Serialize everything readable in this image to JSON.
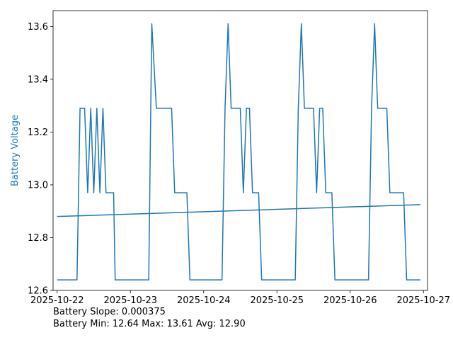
{
  "chart_data": {
    "type": "line",
    "title": "",
    "xlabel": "",
    "ylabel": "Battery Voltage",
    "x_axis": {
      "kind": "datetime",
      "range": [
        "2025-10-21T22:40",
        "2025-10-27T01:20"
      ],
      "ticks": [
        "2025-10-22",
        "2025-10-23",
        "2025-10-24",
        "2025-10-25",
        "2025-10-26",
        "2025-10-27"
      ]
    },
    "y_axis": {
      "range": [
        12.6,
        13.66
      ],
      "ticks": [
        "12.6",
        "12.8",
        "13.0",
        "13.2",
        "13.4",
        "13.6"
      ]
    },
    "grid": false,
    "colors": {
      "voltage": "#1f77b4",
      "trend": "#1f77b4",
      "ylabel": "#1f77b4"
    },
    "series": [
      {
        "kind": "voltage",
        "points": [
          [
            "2025-10-22T00:00",
            12.64
          ],
          [
            "2025-10-22T06:30",
            12.64
          ],
          [
            "2025-10-22T07:30",
            13.29
          ],
          [
            "2025-10-22T09:00",
            13.29
          ],
          [
            "2025-10-22T10:00",
            12.97
          ],
          [
            "2025-10-22T11:00",
            13.29
          ],
          [
            "2025-10-22T12:00",
            12.97
          ],
          [
            "2025-10-22T13:00",
            13.29
          ],
          [
            "2025-10-22T14:00",
            12.97
          ],
          [
            "2025-10-22T15:00",
            13.29
          ],
          [
            "2025-10-22T16:00",
            12.97
          ],
          [
            "2025-10-22T18:30",
            12.97
          ],
          [
            "2025-10-22T19:00",
            12.64
          ],
          [
            "2025-10-23T06:00",
            12.64
          ],
          [
            "2025-10-23T07:00",
            13.61
          ],
          [
            "2025-10-23T08:30",
            13.29
          ],
          [
            "2025-10-23T13:30",
            13.29
          ],
          [
            "2025-10-23T14:30",
            12.97
          ],
          [
            "2025-10-23T18:30",
            12.97
          ],
          [
            "2025-10-23T19:30",
            12.64
          ],
          [
            "2025-10-24T06:00",
            12.64
          ],
          [
            "2025-10-24T07:00",
            13.29
          ],
          [
            "2025-10-24T08:00",
            13.61
          ],
          [
            "2025-10-24T09:00",
            13.29
          ],
          [
            "2025-10-24T12:00",
            13.29
          ],
          [
            "2025-10-24T13:00",
            12.97
          ],
          [
            "2025-10-24T14:00",
            13.29
          ],
          [
            "2025-10-24T15:00",
            13.29
          ],
          [
            "2025-10-24T16:00",
            12.97
          ],
          [
            "2025-10-24T18:00",
            12.97
          ],
          [
            "2025-10-24T19:00",
            12.64
          ],
          [
            "2025-10-25T06:00",
            12.64
          ],
          [
            "2025-10-25T07:00",
            13.29
          ],
          [
            "2025-10-25T08:00",
            13.61
          ],
          [
            "2025-10-25T09:00",
            13.29
          ],
          [
            "2025-10-25T12:00",
            13.29
          ],
          [
            "2025-10-25T13:00",
            12.97
          ],
          [
            "2025-10-25T14:00",
            13.29
          ],
          [
            "2025-10-25T15:00",
            13.29
          ],
          [
            "2025-10-25T16:00",
            12.97
          ],
          [
            "2025-10-25T18:00",
            12.97
          ],
          [
            "2025-10-25T19:00",
            12.64
          ],
          [
            "2025-10-26T06:00",
            12.64
          ],
          [
            "2025-10-26T07:00",
            13.29
          ],
          [
            "2025-10-26T08:00",
            13.61
          ],
          [
            "2025-10-26T09:00",
            13.29
          ],
          [
            "2025-10-26T12:00",
            13.29
          ],
          [
            "2025-10-26T13:00",
            12.97
          ],
          [
            "2025-10-26T17:30",
            12.97
          ],
          [
            "2025-10-26T18:30",
            12.64
          ],
          [
            "2025-10-26T23:00",
            12.64
          ]
        ]
      },
      {
        "kind": "trend",
        "points": [
          [
            "2025-10-22T00:00",
            12.88
          ],
          [
            "2025-10-26T23:00",
            12.925
          ]
        ]
      }
    ]
  },
  "stats": {
    "slope_line": "Battery Slope: 0.000375",
    "minmax_line": "Battery Min: 12.64 Max: 13.61 Avg: 12.90"
  }
}
